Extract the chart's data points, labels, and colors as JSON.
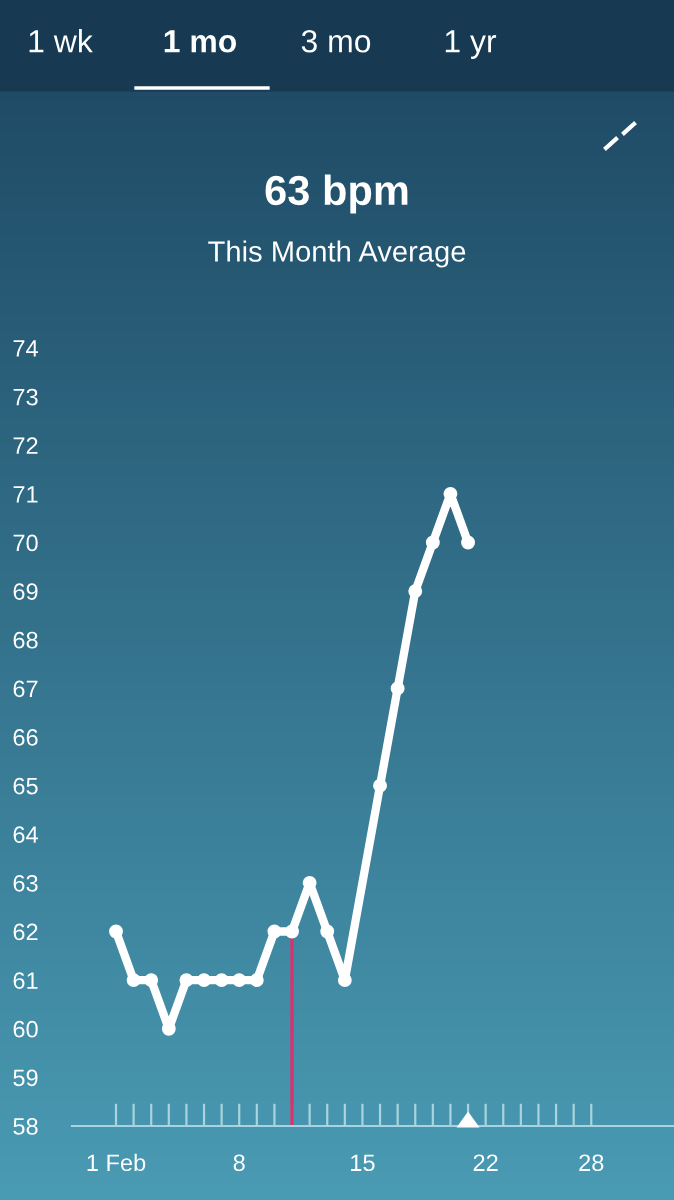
{
  "chart_data": {
    "type": "line",
    "title": "63 bpm",
    "subtitle": "This Month Average",
    "annotations": [
      "1 wk",
      "1 mo",
      "3 mo",
      "1 yr"
    ],
    "x": [
      1,
      2,
      3,
      4,
      5,
      6,
      7,
      8,
      9,
      10,
      11,
      12,
      13,
      14,
      16,
      17,
      18,
      19,
      20,
      21
    ],
    "series": [
      {
        "color": "#ffffff",
        "values": [
          62,
          61,
          61,
          60,
          61,
          61,
          61,
          61,
          61,
          62,
          62,
          63,
          62,
          61,
          65,
          67,
          69,
          70,
          71,
          70
        ]
      }
    ],
    "xlim": [
      -1.5,
      32.7
    ],
    "ylim": [
      58,
      74
    ],
    "xticks": [
      {
        "value": 1,
        "label": "1 Feb"
      },
      {
        "value": 2,
        "label": null
      },
      {
        "value": 3,
        "label": null
      },
      {
        "value": 4,
        "label": null
      },
      {
        "value": 5,
        "label": null
      },
      {
        "value": 6,
        "label": null
      },
      {
        "value": 7,
        "label": null
      },
      8,
      {
        "value": 9,
        "label": null
      },
      {
        "value": 10,
        "label": null
      },
      {
        "value": 11,
        "label": null
      },
      {
        "value": 12,
        "label": null
      },
      {
        "value": 13,
        "label": null
      },
      {
        "value": 14,
        "label": null
      },
      15,
      {
        "value": 16,
        "label": null
      },
      {
        "value": 17,
        "label": null
      },
      {
        "value": 18,
        "label": null
      },
      {
        "value": 19,
        "label": null
      },
      {
        "value": 20,
        "label": null
      },
      {
        "value": 21,
        "label": null
      },
      22,
      {
        "value": 23,
        "label": null
      },
      {
        "value": 24,
        "label": null
      },
      {
        "value": 25,
        "label": null
      },
      {
        "value": 26,
        "label": null
      },
      {
        "value": 27,
        "label": null
      },
      28
    ],
    "yticks": [
      58,
      59,
      60,
      61,
      62,
      63,
      64,
      65,
      66,
      67,
      68,
      69,
      70,
      71,
      72,
      73,
      74
    ],
    "ref_lines": [
      {
        "axis": "x",
        "value": 11,
        "color": "#d8336e"
      }
    ],
    "grid": false,
    "marker": "circle",
    "line_style": "solid"
  }
}
